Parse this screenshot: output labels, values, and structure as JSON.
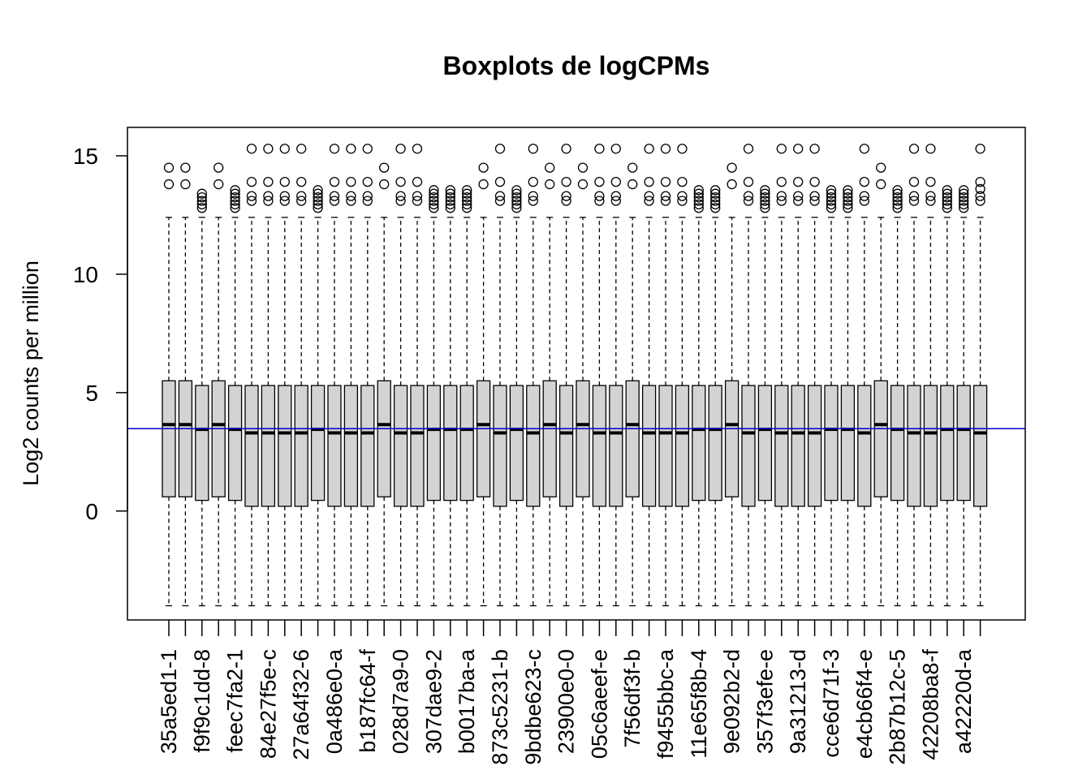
{
  "chart_data": {
    "type": "boxplot",
    "title": "Boxplots de logCPMs",
    "ylabel": "Log2 counts per million",
    "xlabel": "",
    "ylim": [
      -4.6,
      16.2
    ],
    "yticks": [
      0,
      5,
      10,
      15
    ],
    "reference_line": {
      "y": 3.48,
      "color": "#0000CD"
    },
    "box_fill": "#D3D3D3",
    "x_tick_labels": [
      "35a5ed1-1",
      "f9f9c1dd-8",
      "feec7fa2-1",
      "84e27f5e-c",
      "27a64f32-6",
      "0a486e0-a",
      "b187fc64-f",
      "028d7a9-0",
      "307dae9-2",
      "b0017ba-a",
      "873c5231-b",
      "9bdbe623-c",
      "23900e0-0",
      "05c6aeef-e",
      "7f56df3f-b",
      "f9455bbc-a",
      "11e65f8b-4",
      "9e092b2-d",
      "357f3efe-e",
      "9a31213-d",
      "cce6d71f-3",
      "e4cb66f4-e",
      "2b87b12c-5",
      "42208ba8-f",
      "a42220d-a"
    ],
    "label_every": 2,
    "boxes": [
      {
        "min": -4.0,
        "q1": 0.6,
        "median": 3.65,
        "q3": 5.5,
        "max": 12.4,
        "outliers": [
          13.8,
          14.5
        ]
      },
      {
        "min": -4.0,
        "q1": 0.6,
        "median": 3.65,
        "q3": 5.5,
        "max": 12.4,
        "outliers": [
          13.8,
          14.5
        ]
      },
      {
        "min": -4.0,
        "q1": 0.45,
        "median": 3.45,
        "q3": 5.3,
        "max": 12.4,
        "outliers": [
          12.8,
          12.95,
          13.1,
          13.25,
          13.4
        ]
      },
      {
        "min": -4.0,
        "q1": 0.6,
        "median": 3.65,
        "q3": 5.5,
        "max": 12.4,
        "outliers": [
          13.8,
          14.5
        ]
      },
      {
        "min": -4.0,
        "q1": 0.45,
        "median": 3.45,
        "q3": 5.3,
        "max": 12.4,
        "outliers": [
          12.8,
          12.95,
          13.1,
          13.25,
          13.4,
          13.55
        ]
      },
      {
        "min": -4.0,
        "q1": 0.2,
        "median": 3.3,
        "q3": 5.3,
        "max": 12.4,
        "outliers": [
          13.1,
          13.3,
          13.9,
          15.3
        ]
      },
      {
        "min": -4.0,
        "q1": 0.2,
        "median": 3.3,
        "q3": 5.3,
        "max": 12.4,
        "outliers": [
          13.1,
          13.3,
          13.9,
          15.3
        ]
      },
      {
        "min": -4.0,
        "q1": 0.2,
        "median": 3.3,
        "q3": 5.3,
        "max": 12.4,
        "outliers": [
          13.1,
          13.3,
          13.9,
          15.3
        ]
      },
      {
        "min": -4.0,
        "q1": 0.2,
        "median": 3.3,
        "q3": 5.3,
        "max": 12.4,
        "outliers": [
          13.1,
          13.3,
          13.9,
          15.3
        ]
      },
      {
        "min": -4.0,
        "q1": 0.45,
        "median": 3.45,
        "q3": 5.3,
        "max": 12.4,
        "outliers": [
          12.8,
          12.95,
          13.1,
          13.25,
          13.4,
          13.55
        ]
      },
      {
        "min": -4.0,
        "q1": 0.2,
        "median": 3.3,
        "q3": 5.3,
        "max": 12.4,
        "outliers": [
          13.1,
          13.3,
          13.9,
          15.3
        ]
      },
      {
        "min": -4.0,
        "q1": 0.2,
        "median": 3.3,
        "q3": 5.3,
        "max": 12.4,
        "outliers": [
          13.1,
          13.3,
          13.9,
          15.3
        ]
      },
      {
        "min": -4.0,
        "q1": 0.2,
        "median": 3.3,
        "q3": 5.3,
        "max": 12.4,
        "outliers": [
          13.1,
          13.3,
          13.9,
          15.3
        ]
      },
      {
        "min": -4.0,
        "q1": 0.6,
        "median": 3.65,
        "q3": 5.5,
        "max": 12.4,
        "outliers": [
          13.8,
          14.5
        ]
      },
      {
        "min": -4.0,
        "q1": 0.2,
        "median": 3.3,
        "q3": 5.3,
        "max": 12.4,
        "outliers": [
          13.1,
          13.3,
          13.9,
          15.3
        ]
      },
      {
        "min": -4.0,
        "q1": 0.2,
        "median": 3.3,
        "q3": 5.3,
        "max": 12.4,
        "outliers": [
          13.1,
          13.3,
          13.9,
          15.3
        ]
      },
      {
        "min": -4.0,
        "q1": 0.45,
        "median": 3.45,
        "q3": 5.3,
        "max": 12.4,
        "outliers": [
          12.8,
          12.95,
          13.1,
          13.25,
          13.4,
          13.55
        ]
      },
      {
        "min": -4.0,
        "q1": 0.45,
        "median": 3.45,
        "q3": 5.3,
        "max": 12.4,
        "outliers": [
          12.8,
          12.95,
          13.1,
          13.25,
          13.4,
          13.55
        ]
      },
      {
        "min": -4.0,
        "q1": 0.45,
        "median": 3.45,
        "q3": 5.3,
        "max": 12.4,
        "outliers": [
          12.8,
          12.95,
          13.1,
          13.25,
          13.4,
          13.55
        ]
      },
      {
        "min": -4.0,
        "q1": 0.6,
        "median": 3.65,
        "q3": 5.5,
        "max": 12.4,
        "outliers": [
          13.8,
          14.5
        ]
      },
      {
        "min": -4.0,
        "q1": 0.2,
        "median": 3.3,
        "q3": 5.3,
        "max": 12.4,
        "outliers": [
          13.1,
          13.3,
          13.9,
          15.3
        ]
      },
      {
        "min": -4.0,
        "q1": 0.45,
        "median": 3.45,
        "q3": 5.3,
        "max": 12.4,
        "outliers": [
          12.8,
          12.95,
          13.1,
          13.25,
          13.4,
          13.55
        ]
      },
      {
        "min": -4.0,
        "q1": 0.2,
        "median": 3.3,
        "q3": 5.3,
        "max": 12.4,
        "outliers": [
          13.1,
          13.3,
          13.9,
          15.3
        ]
      },
      {
        "min": -4.0,
        "q1": 0.6,
        "median": 3.65,
        "q3": 5.5,
        "max": 12.4,
        "outliers": [
          13.8,
          14.5
        ]
      },
      {
        "min": -4.0,
        "q1": 0.2,
        "median": 3.3,
        "q3": 5.3,
        "max": 12.4,
        "outliers": [
          13.1,
          13.3,
          13.9,
          15.3
        ]
      },
      {
        "min": -4.0,
        "q1": 0.6,
        "median": 3.65,
        "q3": 5.5,
        "max": 12.4,
        "outliers": [
          13.8,
          14.5
        ]
      },
      {
        "min": -4.0,
        "q1": 0.2,
        "median": 3.3,
        "q3": 5.3,
        "max": 12.4,
        "outliers": [
          13.1,
          13.3,
          13.9,
          15.3
        ]
      },
      {
        "min": -4.0,
        "q1": 0.2,
        "median": 3.3,
        "q3": 5.3,
        "max": 12.4,
        "outliers": [
          13.1,
          13.3,
          13.9,
          15.3
        ]
      },
      {
        "min": -4.0,
        "q1": 0.6,
        "median": 3.65,
        "q3": 5.5,
        "max": 12.4,
        "outliers": [
          13.8,
          14.5
        ]
      },
      {
        "min": -4.0,
        "q1": 0.2,
        "median": 3.3,
        "q3": 5.3,
        "max": 12.4,
        "outliers": [
          13.1,
          13.3,
          13.9,
          15.3
        ]
      },
      {
        "min": -4.0,
        "q1": 0.2,
        "median": 3.3,
        "q3": 5.3,
        "max": 12.4,
        "outliers": [
          13.1,
          13.3,
          13.9,
          15.3
        ]
      },
      {
        "min": -4.0,
        "q1": 0.2,
        "median": 3.3,
        "q3": 5.3,
        "max": 12.4,
        "outliers": [
          13.1,
          13.3,
          13.9,
          15.3
        ]
      },
      {
        "min": -4.0,
        "q1": 0.45,
        "median": 3.45,
        "q3": 5.3,
        "max": 12.4,
        "outliers": [
          12.8,
          12.95,
          13.1,
          13.25,
          13.4,
          13.55
        ]
      },
      {
        "min": -4.0,
        "q1": 0.45,
        "median": 3.45,
        "q3": 5.3,
        "max": 12.4,
        "outliers": [
          12.8,
          12.95,
          13.1,
          13.25,
          13.4,
          13.55
        ]
      },
      {
        "min": -4.0,
        "q1": 0.6,
        "median": 3.65,
        "q3": 5.5,
        "max": 12.4,
        "outliers": [
          13.8,
          14.5
        ]
      },
      {
        "min": -4.0,
        "q1": 0.2,
        "median": 3.3,
        "q3": 5.3,
        "max": 12.4,
        "outliers": [
          13.1,
          13.3,
          13.9,
          15.3
        ]
      },
      {
        "min": -4.0,
        "q1": 0.45,
        "median": 3.45,
        "q3": 5.3,
        "max": 12.4,
        "outliers": [
          12.8,
          12.95,
          13.1,
          13.25,
          13.4,
          13.55
        ]
      },
      {
        "min": -4.0,
        "q1": 0.2,
        "median": 3.3,
        "q3": 5.3,
        "max": 12.4,
        "outliers": [
          13.1,
          13.3,
          13.9,
          15.3
        ]
      },
      {
        "min": -4.0,
        "q1": 0.2,
        "median": 3.3,
        "q3": 5.3,
        "max": 12.4,
        "outliers": [
          13.1,
          13.3,
          13.9,
          15.3
        ]
      },
      {
        "min": -4.0,
        "q1": 0.2,
        "median": 3.3,
        "q3": 5.3,
        "max": 12.4,
        "outliers": [
          13.1,
          13.3,
          13.9,
          15.3
        ]
      },
      {
        "min": -4.0,
        "q1": 0.45,
        "median": 3.45,
        "q3": 5.3,
        "max": 12.4,
        "outliers": [
          12.8,
          12.95,
          13.1,
          13.25,
          13.4,
          13.55
        ]
      },
      {
        "min": -4.0,
        "q1": 0.45,
        "median": 3.45,
        "q3": 5.3,
        "max": 12.4,
        "outliers": [
          12.8,
          12.95,
          13.1,
          13.25,
          13.4,
          13.55
        ]
      },
      {
        "min": -4.0,
        "q1": 0.2,
        "median": 3.3,
        "q3": 5.3,
        "max": 12.4,
        "outliers": [
          13.1,
          13.3,
          13.9,
          15.3
        ]
      },
      {
        "min": -4.0,
        "q1": 0.6,
        "median": 3.65,
        "q3": 5.5,
        "max": 12.4,
        "outliers": [
          13.8,
          14.5
        ]
      },
      {
        "min": -4.0,
        "q1": 0.45,
        "median": 3.45,
        "q3": 5.3,
        "max": 12.4,
        "outliers": [
          12.8,
          12.95,
          13.1,
          13.25,
          13.4,
          13.55
        ]
      },
      {
        "min": -4.0,
        "q1": 0.2,
        "median": 3.3,
        "q3": 5.3,
        "max": 12.4,
        "outliers": [
          13.1,
          13.3,
          13.9,
          15.3
        ]
      },
      {
        "min": -4.0,
        "q1": 0.2,
        "median": 3.3,
        "q3": 5.3,
        "max": 12.4,
        "outliers": [
          13.1,
          13.3,
          13.9,
          15.3
        ]
      },
      {
        "min": -4.0,
        "q1": 0.45,
        "median": 3.45,
        "q3": 5.3,
        "max": 12.4,
        "outliers": [
          12.8,
          12.95,
          13.1,
          13.25,
          13.4,
          13.55
        ]
      },
      {
        "min": -4.0,
        "q1": 0.45,
        "median": 3.45,
        "q3": 5.3,
        "max": 12.4,
        "outliers": [
          12.8,
          12.95,
          13.1,
          13.25,
          13.4,
          13.55
        ]
      },
      {
        "min": -4.0,
        "q1": 0.2,
        "median": 3.3,
        "q3": 5.3,
        "max": 12.4,
        "outliers": [
          13.1,
          13.3,
          13.6,
          13.9,
          15.3
        ]
      }
    ]
  }
}
